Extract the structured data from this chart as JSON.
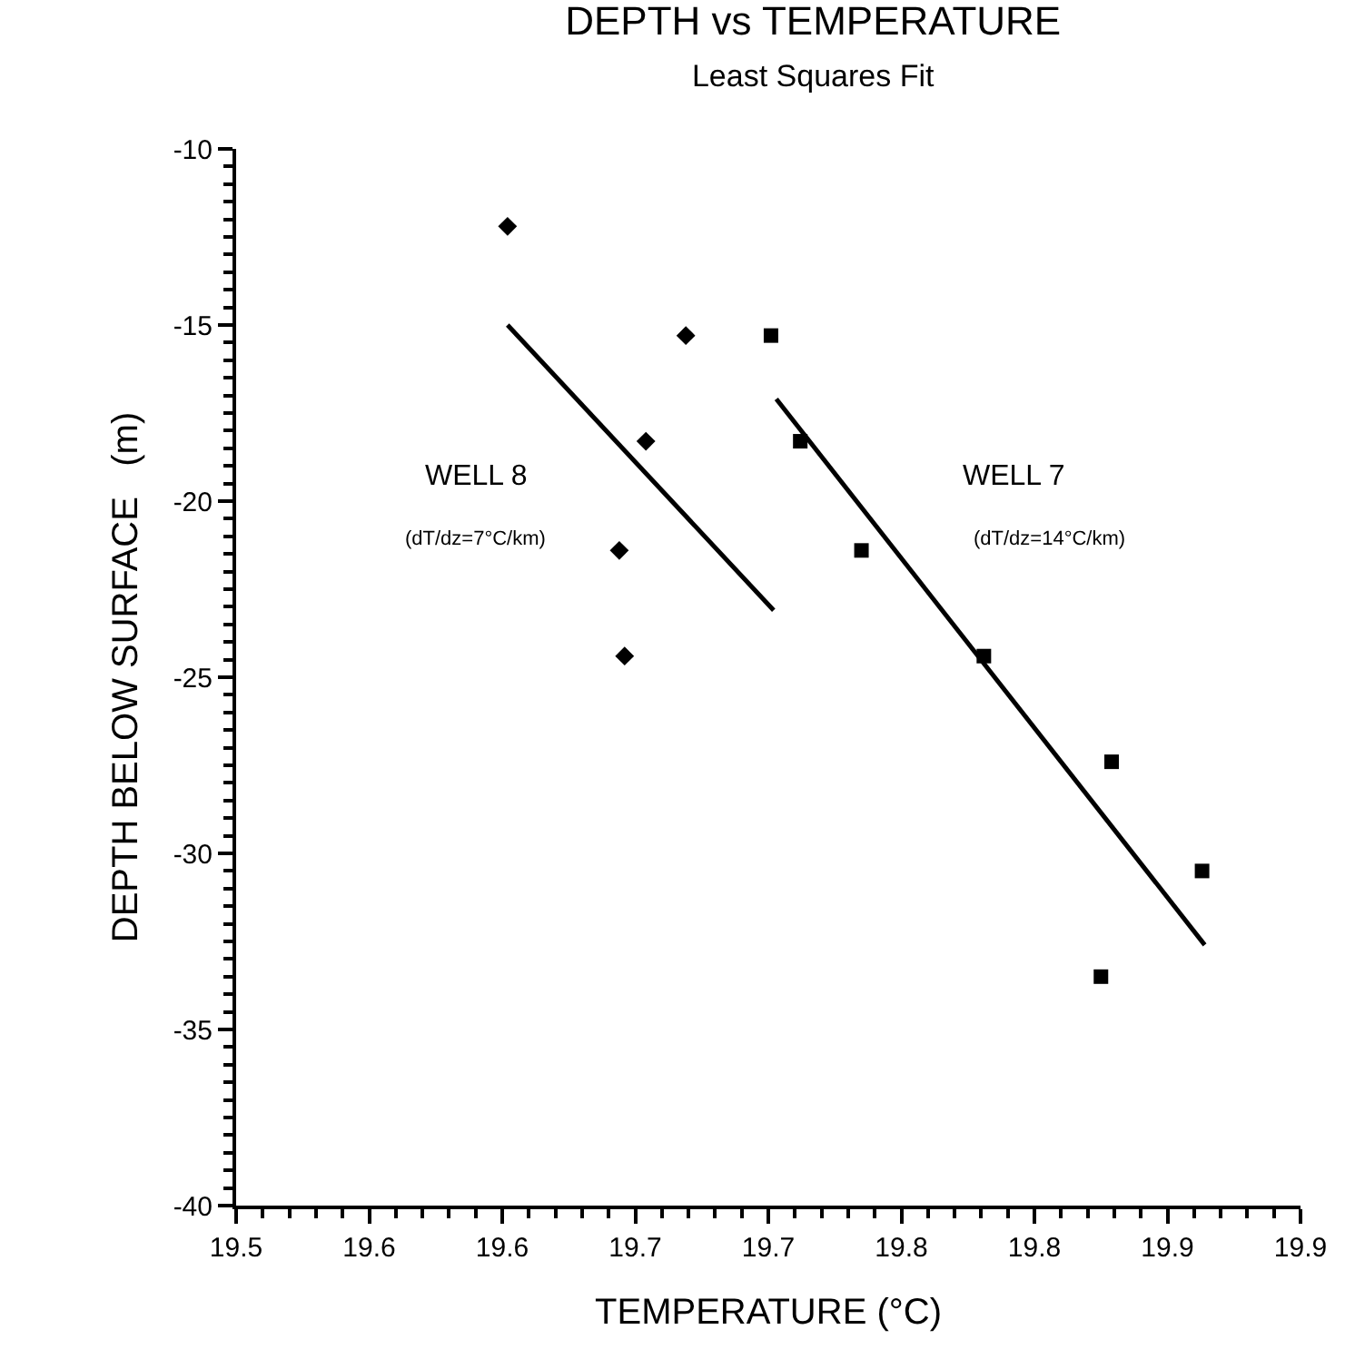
{
  "chart_data": {
    "type": "scatter",
    "title": "DEPTH vs TEMPERATURE",
    "subtitle": "Least Squares Fit",
    "xlabel": "TEMPERATURE (°C)",
    "ylabel": "DEPTH BELOW SURFACE   (m)",
    "xlim": [
      19.5,
      19.9
    ],
    "ylim": [
      -40,
      -10
    ],
    "xticks": [
      {
        "value": 19.5,
        "label": "19.5"
      },
      {
        "value": 19.55,
        "label": "19.6"
      },
      {
        "value": 19.6,
        "label": "19.6"
      },
      {
        "value": 19.65,
        "label": "19.7"
      },
      {
        "value": 19.7,
        "label": "19.7"
      },
      {
        "value": 19.75,
        "label": "19.8"
      },
      {
        "value": 19.8,
        "label": "19.8"
      },
      {
        "value": 19.85,
        "label": "19.9"
      },
      {
        "value": 19.9,
        "label": "19.9"
      }
    ],
    "yticks": [
      -40,
      -35,
      -30,
      -25,
      -20,
      -15,
      -10
    ],
    "series": [
      {
        "marker": "diamond",
        "color": "#000000",
        "x": [
          19.602,
          19.669,
          19.654,
          19.644,
          19.646
        ],
        "values": [
          -12.2,
          -15.3,
          -18.3,
          -21.4,
          -24.4
        ]
      },
      {
        "type": "line",
        "marker": "none",
        "color": "#000000",
        "x": [
          19.602,
          19.702
        ],
        "values": [
          -15.0,
          -23.1
        ]
      },
      {
        "marker": "square",
        "color": "#000000",
        "x": [
          19.701,
          19.712,
          19.735,
          19.781,
          19.829,
          19.863,
          19.825
        ],
        "values": [
          -15.3,
          -18.3,
          -21.4,
          -24.4,
          -27.4,
          -30.5,
          -33.5
        ]
      },
      {
        "type": "line",
        "marker": "none",
        "color": "#000000",
        "x": [
          19.703,
          19.864
        ],
        "values": [
          -17.1,
          -32.6
        ]
      }
    ],
    "annotations": [
      "WELL 8",
      "(dT/dz=7°C/km)",
      "WELL 7",
      "(dT/dz=14°C/km)"
    ]
  }
}
